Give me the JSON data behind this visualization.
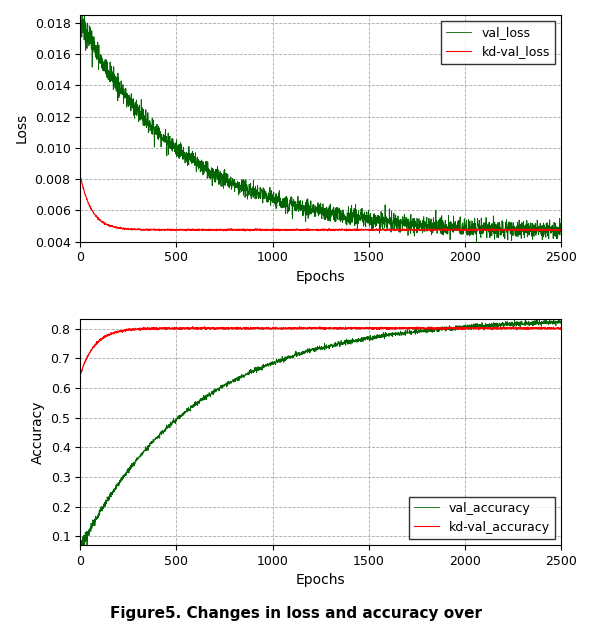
{
  "n_epochs": 2500,
  "loss_ylim": [
    0.004,
    0.0185
  ],
  "loss_yticks": [
    0.004,
    0.006,
    0.008,
    0.01,
    0.012,
    0.014,
    0.016,
    0.018
  ],
  "acc_ylim": [
    0.07,
    0.835
  ],
  "acc_yticks": [
    0.1,
    0.2,
    0.3,
    0.4,
    0.5,
    0.6,
    0.7,
    0.8
  ],
  "xlim": [
    0,
    2500
  ],
  "xticks": [
    0,
    500,
    1000,
    1500,
    2000,
    2500
  ],
  "green_color": "#006400",
  "red_color": "#ff0000",
  "grid_color": "#aaaaaa",
  "grid_linestyle": "--",
  "xlabel": "Epochs",
  "ylabel_loss": "Loss",
  "ylabel_acc": "Accuracy",
  "legend_loss": [
    "val_loss",
    "kd-val_loss"
  ],
  "legend_acc": [
    "val_accuracy",
    "kd-val_accuracy"
  ],
  "caption": "Figure5. Changes in loss and accuracy over",
  "caption_fontsize": 11,
  "caption_fontweight": "bold",
  "axis_label_fontsize": 10,
  "tick_fontsize": 9,
  "legend_fontsize": 9
}
